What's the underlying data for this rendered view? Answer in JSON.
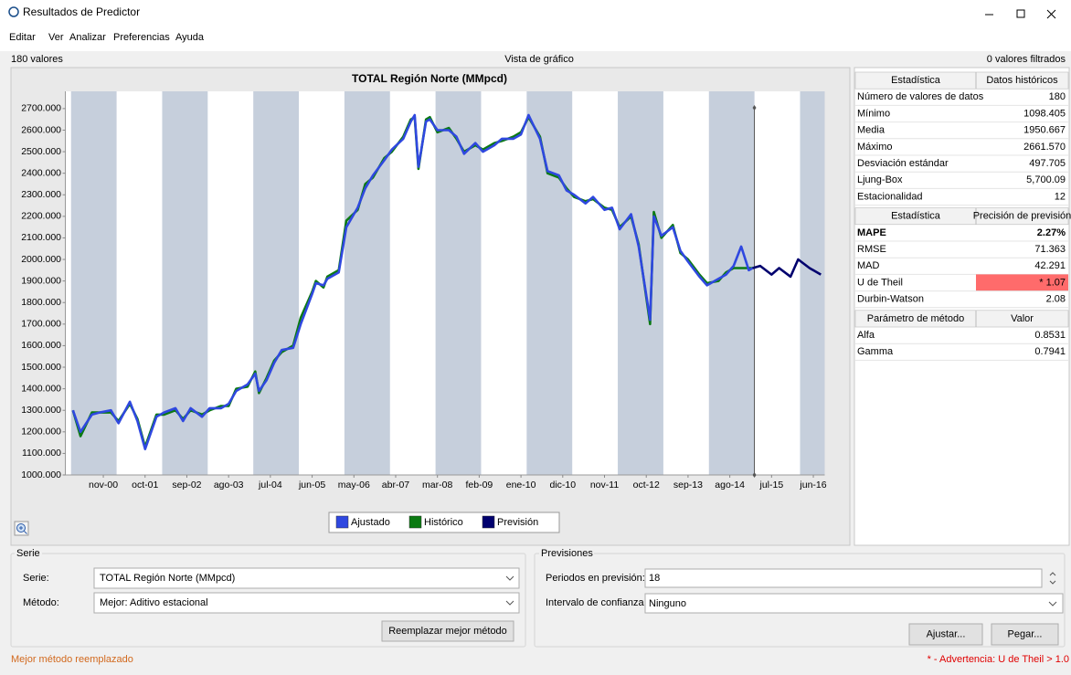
{
  "window": {
    "title": "Resultados de Predictor"
  },
  "menu": [
    "Editar",
    "Ver",
    "Analizar",
    "Preferencias",
    "Ayuda"
  ],
  "toolbar": {
    "left": "180 valores",
    "center": "Vista de gráfico",
    "right": "0 valores filtrados"
  },
  "chart_data": {
    "type": "line",
    "title": "TOTAL Región Norte (MMpcd)",
    "xlim": [
      0,
      200
    ],
    "xticks": [
      {
        "value": 10,
        "label": "nov-00"
      },
      {
        "value": 21,
        "label": "oct-01"
      },
      {
        "value": 32,
        "label": "sep-02"
      },
      {
        "value": 43,
        "label": "ago-03"
      },
      {
        "value": 54,
        "label": "jul-04"
      },
      {
        "value": 65,
        "label": "jun-05"
      },
      {
        "value": 76,
        "label": "may-06"
      },
      {
        "value": 87,
        "label": "abr-07"
      },
      {
        "value": 98,
        "label": "mar-08"
      },
      {
        "value": 109,
        "label": "feb-09"
      },
      {
        "value": 120,
        "label": "ene-10"
      },
      {
        "value": 131,
        "label": "dic-10"
      },
      {
        "value": 142,
        "label": "nov-11"
      },
      {
        "value": 153,
        "label": "oct-12"
      },
      {
        "value": 164,
        "label": "sep-13"
      },
      {
        "value": 175,
        "label": "ago-14"
      },
      {
        "value": 186,
        "label": "jul-15"
      },
      {
        "value": 197,
        "label": "jun-16"
      }
    ],
    "ylim": [
      1000,
      2780
    ],
    "yticks": [
      {
        "value": 1000,
        "label": "1000.000"
      },
      {
        "value": 1100,
        "label": "1100.000"
      },
      {
        "value": 1200,
        "label": "1200.000"
      },
      {
        "value": 1300,
        "label": "1300.000"
      },
      {
        "value": 1400,
        "label": "1400.000"
      },
      {
        "value": 1500,
        "label": "1500.000"
      },
      {
        "value": 1600,
        "label": "1600.000"
      },
      {
        "value": 1700,
        "label": "1700.000"
      },
      {
        "value": 1800,
        "label": "1800.000"
      },
      {
        "value": 1900,
        "label": "1900.000"
      },
      {
        "value": 2000,
        "label": "2000.000"
      },
      {
        "value": 2100,
        "label": "2100.000"
      },
      {
        "value": 2200,
        "label": "2200.000"
      },
      {
        "value": 2300,
        "label": "2300.000"
      },
      {
        "value": 2400,
        "label": "2400.000"
      },
      {
        "value": 2500,
        "label": "2500.000"
      },
      {
        "value": 2600,
        "label": "2600.000"
      },
      {
        "value": 2700,
        "label": "2700.000"
      }
    ],
    "grid": false,
    "legend": "bottom",
    "series": [
      {
        "name": "Ajustado",
        "color": "#2f48e0",
        "draw_order": 2,
        "x": [
          2,
          4,
          7,
          9,
          12,
          14,
          17,
          19,
          21,
          24,
          26,
          29,
          31,
          33,
          36,
          38,
          41,
          43,
          45,
          48,
          50,
          51,
          53,
          55,
          57,
          60,
          62,
          65,
          66,
          68,
          69,
          72,
          74,
          77,
          79,
          81,
          84,
          86,
          89,
          91,
          92,
          93,
          95,
          96,
          98,
          101,
          103,
          105,
          108,
          110,
          113,
          115,
          118,
          120,
          122,
          125,
          127,
          130,
          132,
          134,
          137,
          139,
          142,
          144,
          146,
          149,
          151,
          154,
          155,
          157,
          160,
          162,
          164,
          167,
          169,
          172,
          174,
          176,
          178,
          180,
          181
        ],
        "values": [
          1300,
          1200,
          1280,
          1290,
          1300,
          1240,
          1340,
          1250,
          1120,
          1270,
          1290,
          1310,
          1250,
          1310,
          1270,
          1310,
          1310,
          1330,
          1390,
          1420,
          1470,
          1390,
          1440,
          1520,
          1580,
          1590,
          1700,
          1840,
          1890,
          1880,
          1910,
          1940,
          2150,
          2240,
          2330,
          2390,
          2460,
          2510,
          2560,
          2640,
          2670,
          2430,
          2640,
          2650,
          2600,
          2600,
          2570,
          2490,
          2540,
          2500,
          2530,
          2560,
          2560,
          2580,
          2670,
          2560,
          2410,
          2390,
          2320,
          2300,
          2260,
          2290,
          2230,
          2240,
          2140,
          2210,
          2060,
          1720,
          2200,
          2110,
          2150,
          2040,
          1990,
          1920,
          1880,
          1910,
          1930,
          1970,
          2060,
          1950,
          1960
        ]
      },
      {
        "name": "Histórico",
        "color": "#0b7a12",
        "draw_order": 1,
        "x": [
          2,
          4,
          7,
          9,
          12,
          14,
          17,
          19,
          21,
          24,
          26,
          29,
          31,
          33,
          36,
          38,
          41,
          43,
          45,
          48,
          50,
          51,
          53,
          55,
          57,
          60,
          62,
          65,
          66,
          68,
          69,
          72,
          74,
          77,
          79,
          81,
          84,
          86,
          89,
          91,
          92,
          93,
          95,
          96,
          98,
          101,
          103,
          105,
          108,
          110,
          113,
          115,
          118,
          120,
          122,
          125,
          127,
          130,
          132,
          134,
          137,
          139,
          142,
          144,
          146,
          149,
          151,
          154,
          155,
          157,
          160,
          162,
          164,
          167,
          169,
          172,
          174,
          176,
          178,
          180,
          181
        ],
        "values": [
          1300,
          1180,
          1290,
          1290,
          1290,
          1250,
          1330,
          1260,
          1130,
          1280,
          1280,
          1300,
          1260,
          1300,
          1280,
          1300,
          1320,
          1320,
          1400,
          1410,
          1480,
          1380,
          1450,
          1530,
          1570,
          1600,
          1730,
          1850,
          1900,
          1870,
          1920,
          1950,
          2180,
          2230,
          2350,
          2380,
          2470,
          2500,
          2570,
          2650,
          2660,
          2420,
          2650,
          2660,
          2590,
          2610,
          2560,
          2500,
          2530,
          2510,
          2540,
          2550,
          2570,
          2590,
          2660,
          2570,
          2400,
          2380,
          2330,
          2290,
          2270,
          2280,
          2240,
          2230,
          2150,
          2200,
          2070,
          1700,
          2220,
          2100,
          2160,
          2030,
          2000,
          1930,
          1890,
          1900,
          1940,
          1960,
          1960,
          1960,
          1960
        ]
      },
      {
        "name": "Previsión",
        "color": "#00006e",
        "draw_order": 3,
        "x": [
          181,
          183,
          186,
          188,
          191,
          193,
          196,
          199
        ],
        "values": [
          1960,
          1970,
          1930,
          1960,
          1920,
          2000,
          1960,
          1930
        ]
      }
    ]
  },
  "stats": [
    {
      "header": [
        "Estadística",
        "Datos históricos"
      ],
      "rows": [
        [
          "Número de valores de datos",
          "180"
        ],
        [
          "Mínimo",
          "1098.405"
        ],
        [
          "Media",
          "1950.667"
        ],
        [
          "Máximo",
          "2661.570"
        ],
        [
          "Desviación estándar",
          "497.705"
        ],
        [
          "Ljung-Box",
          "5,700.09"
        ],
        [
          "Estacionalidad",
          "12"
        ]
      ]
    },
    {
      "header": [
        "Estadística",
        "Precisión de previsión"
      ],
      "rows": [
        [
          "MAPE",
          "2.27%"
        ],
        [
          "RMSE",
          "71.363"
        ],
        [
          "MAD",
          "42.291"
        ],
        [
          "U de Theil",
          "* 1.07"
        ],
        [
          "Durbin-Watson",
          "2.08"
        ]
      ]
    },
    {
      "header": [
        "Parámetro de método",
        "Valor"
      ],
      "rows": [
        [
          "Alfa",
          "0.8531"
        ],
        [
          "Gamma",
          "0.7941"
        ]
      ]
    }
  ],
  "serie_group": {
    "title": "Serie",
    "serie_label": "Serie:",
    "serie_value": "TOTAL Región Norte (MMpcd)",
    "method_label": "Método:",
    "method_value": "Mejor: Aditivo estacional",
    "button": "Reemplazar mejor método"
  },
  "forecast_group": {
    "title": "Previsiones",
    "periods_label": "Periodos en previsión:",
    "periods_value": "18",
    "interval_label": "Intervalo de confianza:",
    "interval_value": "Ninguno",
    "buttons": [
      "Ajustar...",
      "Pegar..."
    ]
  },
  "status": {
    "left": "Mejor método reemplazado",
    "right": "* - Advertencia: U de Theil > 1.0"
  }
}
